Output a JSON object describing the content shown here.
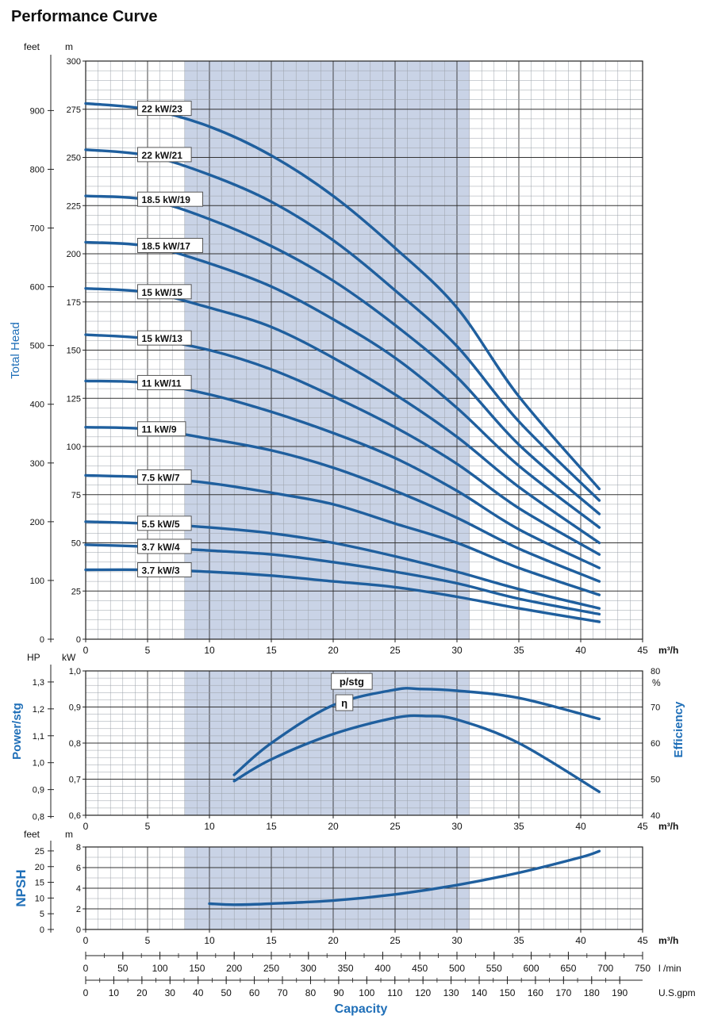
{
  "page_title": "Performance Curve",
  "colors": {
    "curve": "#1f5f9e",
    "axis_label": "#1f6fb8",
    "band": "#c9d3e6",
    "grid": "#000000"
  },
  "chart_data": [
    {
      "type": "line",
      "name": "head",
      "ylabel": "Total Head",
      "x_unit": "m³/h",
      "left_unit": "feet",
      "right_unit": "m",
      "xlim": [
        0,
        45
      ],
      "ylim": [
        0,
        300
      ],
      "x_ticks": [
        0,
        5,
        10,
        15,
        20,
        25,
        30,
        35,
        40,
        45
      ],
      "y_ticks_m": [
        0,
        25,
        50,
        75,
        100,
        125,
        150,
        175,
        200,
        225,
        250,
        275,
        300
      ],
      "y_ticks_feet": [
        0,
        100,
        200,
        300,
        400,
        500,
        600,
        700,
        800,
        900
      ],
      "preferred_range": [
        8,
        31
      ],
      "grid": true,
      "series": [
        {
          "name": "22 kW/23",
          "label_x": 4.2,
          "x": [
            0,
            5,
            10,
            15,
            20,
            25,
            30,
            35,
            41.5
          ],
          "y": [
            278,
            275,
            266,
            251,
            230,
            203,
            172,
            126,
            78
          ]
        },
        {
          "name": "22 kW/21",
          "label_x": 4.2,
          "x": [
            0,
            5,
            10,
            15,
            20,
            25,
            30,
            35,
            41.5
          ],
          "y": [
            254,
            251,
            241,
            227,
            207,
            181,
            152,
            113,
            72
          ]
        },
        {
          "name": "18.5 kW/19",
          "label_x": 4.2,
          "x": [
            0,
            5,
            10,
            15,
            20,
            25,
            30,
            35,
            41.5
          ],
          "y": [
            230,
            228,
            218,
            204,
            186,
            163,
            136,
            101,
            65
          ]
        },
        {
          "name": "18.5 kW/17",
          "label_x": 4.2,
          "x": [
            0,
            5,
            10,
            15,
            20,
            25,
            30,
            35,
            41.5
          ],
          "y": [
            206,
            204,
            195,
            183,
            166,
            146,
            120,
            90,
            58
          ]
        },
        {
          "name": "15 kW/15",
          "label_x": 4.2,
          "x": [
            0,
            5,
            10,
            15,
            20,
            25,
            30,
            35,
            41.5
          ],
          "y": [
            182,
            180,
            172,
            162,
            146,
            127,
            105,
            79,
            50
          ]
        },
        {
          "name": "15 kW/13",
          "label_x": 4.2,
          "x": [
            0,
            5,
            10,
            15,
            20,
            25,
            30,
            35,
            41.5
          ],
          "y": [
            158,
            156,
            150,
            140,
            126,
            110,
            91,
            68,
            44
          ]
        },
        {
          "name": "11 kW/11",
          "label_x": 4.2,
          "x": [
            0,
            5,
            10,
            15,
            20,
            25,
            30,
            35,
            41.5
          ],
          "y": [
            134,
            133,
            127,
            118,
            107,
            94,
            77,
            57,
            37
          ]
        },
        {
          "name": "11 kW/9",
          "label_x": 4.2,
          "x": [
            0,
            5,
            10,
            15,
            20,
            25,
            30,
            35,
            41.5
          ],
          "y": [
            110,
            109,
            104,
            98,
            89,
            77,
            63,
            47,
            30
          ]
        },
        {
          "name": "7.5 kW/7",
          "label_x": 4.2,
          "x": [
            0,
            5,
            10,
            15,
            20,
            25,
            30,
            35,
            41.5
          ],
          "y": [
            85,
            84,
            81,
            76,
            70,
            60,
            50,
            37,
            23
          ]
        },
        {
          "name": "5.5 kW/5",
          "label_x": 4.2,
          "x": [
            0,
            5,
            10,
            15,
            20,
            25,
            30,
            35,
            41.5
          ],
          "y": [
            61,
            60,
            58,
            55,
            50,
            43,
            35,
            26,
            16
          ]
        },
        {
          "name": "3.7 kW/4",
          "label_x": 4.2,
          "x": [
            0,
            5,
            10,
            15,
            20,
            25,
            30,
            35,
            41.5
          ],
          "y": [
            49,
            48,
            46,
            44,
            40,
            35,
            29,
            21,
            13
          ]
        },
        {
          "name": "3.7 kW/3",
          "label_x": 4.2,
          "x": [
            0,
            5,
            10,
            15,
            20,
            25,
            30,
            35,
            41.5
          ],
          "y": [
            36,
            36,
            35,
            33,
            30,
            27,
            22,
            16,
            9
          ]
        }
      ]
    },
    {
      "type": "line",
      "name": "power-efficiency",
      "ylabel_left": "Power/stg",
      "ylabel_right": "Efficiency",
      "left_unit_hp": "HP",
      "left_unit_kw": "kW",
      "right_unit": "%",
      "x_unit": "m³/h",
      "xlim": [
        0,
        45
      ],
      "ylim_kw": [
        0.6,
        1.0
      ],
      "y_ticks_kw": [
        "0,6",
        "0,7",
        "0,8",
        "0,9",
        "1,0"
      ],
      "y_ticks_hp": [
        "0,8",
        "0,9",
        "1,0",
        "1,1",
        "1,2",
        "1,3"
      ],
      "y_ticks_hp_values": [
        0.8,
        0.9,
        1.0,
        1.1,
        1.2,
        1.3
      ],
      "y_ticks_eff": [
        40,
        50,
        60,
        70,
        80
      ],
      "series": [
        {
          "name": "p/stg",
          "label_x": 21.5,
          "label_y": 0.971,
          "axis": "kW",
          "x": [
            12,
            15,
            20,
            25,
            27,
            30,
            35,
            41.5
          ],
          "y": [
            0.712,
            0.8,
            0.905,
            0.948,
            0.95,
            0.945,
            0.925,
            0.867
          ]
        },
        {
          "name": "η",
          "label_x": 20.9,
          "label_y": 0.912,
          "axis": "eff",
          "x": [
            12,
            15,
            20,
            25,
            27.5,
            30,
            35,
            41.5
          ],
          "y": [
            49.5,
            55.5,
            62.5,
            67.0,
            67.5,
            66.5,
            60.0,
            46.5
          ]
        }
      ]
    },
    {
      "type": "line",
      "name": "npsh",
      "ylabel": "NPSH",
      "left_unit": "feet",
      "right_unit": "m",
      "x_unit": "m³/h",
      "xlim": [
        0,
        45
      ],
      "ylim": [
        0,
        8
      ],
      "y_ticks_m": [
        0,
        2,
        4,
        6,
        8
      ],
      "y_ticks_feet": [
        0,
        5,
        10,
        15,
        20,
        25
      ],
      "series": [
        {
          "name": "NPSH",
          "x": [
            10,
            12,
            15,
            20,
            25,
            30,
            35,
            40,
            41.5
          ],
          "y": [
            2.5,
            2.4,
            2.5,
            2.8,
            3.4,
            4.3,
            5.5,
            7.0,
            7.6
          ]
        }
      ]
    }
  ],
  "capacity_axes": {
    "title": "Capacity",
    "m3h": {
      "unit": "m³/h",
      "ticks": [
        0,
        5,
        10,
        15,
        20,
        25,
        30,
        35,
        40,
        45
      ]
    },
    "lmin": {
      "unit": "l /min",
      "ticks": [
        0,
        50,
        100,
        150,
        200,
        250,
        300,
        350,
        400,
        450,
        500,
        550,
        600,
        650,
        700,
        750
      ]
    },
    "usgpm": {
      "unit": "U.S.gpm",
      "ticks": [
        0,
        10,
        20,
        30,
        40,
        50,
        60,
        70,
        80,
        90,
        100,
        110,
        120,
        130,
        140,
        150,
        160,
        170,
        180,
        190
      ]
    }
  }
}
